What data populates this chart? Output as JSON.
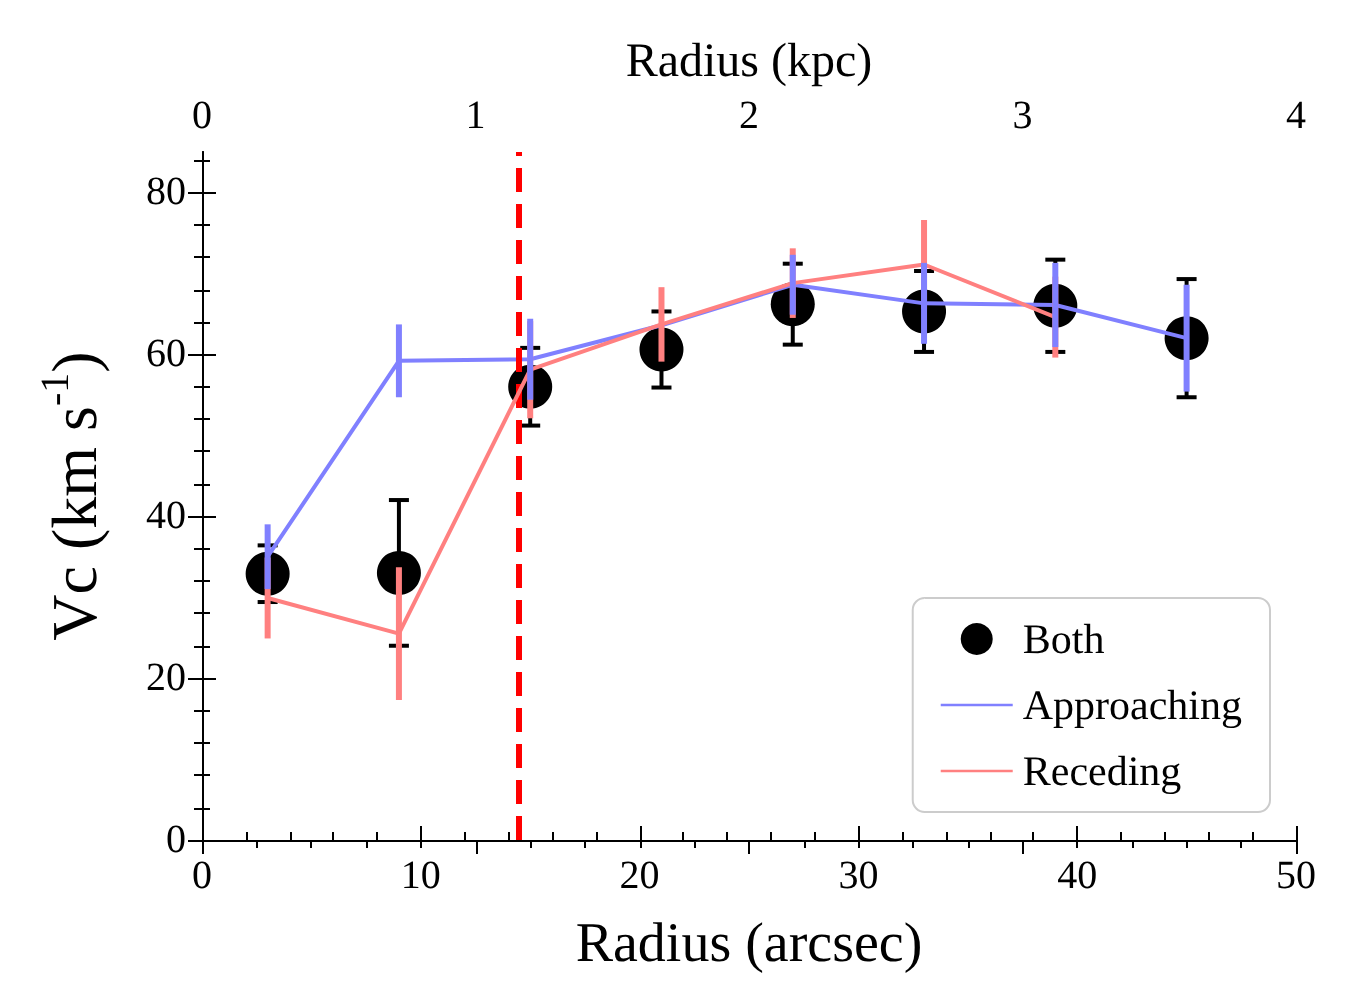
{
  "chart_data": {
    "type": "line",
    "xlabel": "Radius (arcsec)",
    "ylabel": "Vc (km s$^{-1}$)",
    "x2label": "Radius (kpc)",
    "xlim": [
      0,
      50
    ],
    "xticks": [
      0,
      10,
      20,
      30,
      40,
      50
    ],
    "ylim": [
      0,
      85
    ],
    "yticks": [
      0,
      20,
      40,
      60,
      80
    ],
    "x2lim": [
      0,
      4
    ],
    "x2ticks": [
      0,
      1,
      2,
      3,
      4
    ],
    "grid": false,
    "legend": "bottom right",
    "series": [
      {
        "name": "Both",
        "type": "scatter",
        "marker": "circle",
        "color": "#000000",
        "x": [
          3,
          9,
          15,
          21,
          27,
          33,
          39,
          45
        ],
        "values": [
          32.9,
          33,
          56,
          60.6,
          66.2,
          65.3,
          66,
          62
        ],
        "errors": [
          3.5,
          9,
          4.8,
          4.7,
          5,
          5,
          5.7,
          7.3
        ]
      },
      {
        "name": "Approaching",
        "type": "line",
        "marker": "none",
        "color": "#8080ff",
        "x": [
          3,
          9,
          15,
          21,
          27,
          33,
          39,
          45
        ],
        "values": [
          35,
          59.2,
          59.4,
          63.6,
          68.6,
          66.3,
          66.1,
          62
        ],
        "errors": [
          4,
          4.5,
          5,
          null,
          3.7,
          5,
          5.2,
          6.6
        ]
      },
      {
        "name": "Receding",
        "type": "line",
        "marker": "none",
        "color": "#ff8080",
        "x": [
          3,
          9,
          15,
          21,
          27,
          33,
          39
        ],
        "values": [
          29.9,
          25.5,
          58.1,
          63.7,
          68.8,
          71.1,
          64.6
        ],
        "errors": [
          5,
          8.2,
          6,
          4.6,
          4.3,
          5.5,
          5
        ]
      }
    ],
    "ref_lines": [
      {
        "axis": "x",
        "value": 14.5,
        "color": "#ff0000",
        "line_style": "dashed"
      }
    ]
  }
}
